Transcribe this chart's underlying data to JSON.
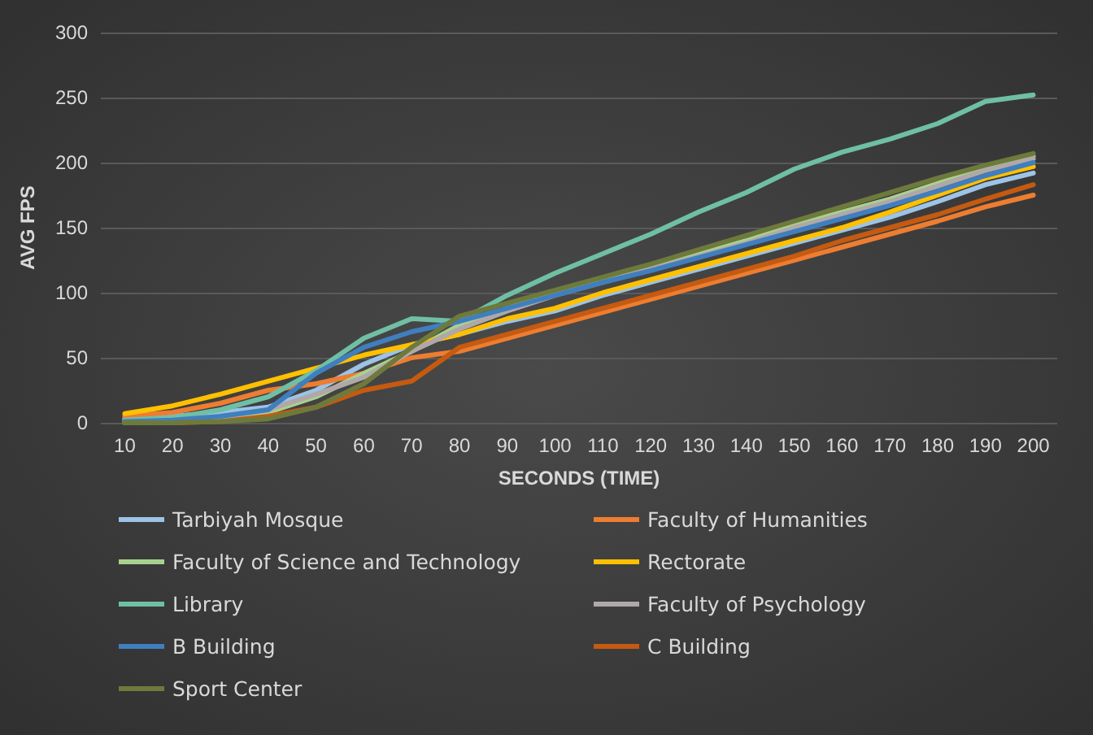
{
  "chart_data": {
    "type": "line",
    "xlabel": "SECONDS (TIME)",
    "ylabel": "AVG FPS",
    "categories": [
      "10",
      "20",
      "30",
      "40",
      "50",
      "60",
      "70",
      "80",
      "90",
      "100",
      "110",
      "120",
      "130",
      "140",
      "150",
      "160",
      "170",
      "180",
      "190",
      "200"
    ],
    "ylim": [
      0,
      300
    ],
    "yticks": [
      0,
      50,
      100,
      150,
      200,
      250,
      300
    ],
    "grid": "y",
    "legend": "bottom",
    "marker": "none",
    "series": [
      {
        "name": "Tarbiyah Mosque",
        "color": "#9dc3e6",
        "values": [
          3,
          5,
          8,
          12,
          25,
          45,
          60,
          68,
          78,
          86,
          98,
          108,
          118,
          128,
          138,
          148,
          158,
          170,
          183,
          192
        ]
      },
      {
        "name": "Faculty of Humanities",
        "color": "#ed7d31",
        "values": [
          5,
          8,
          15,
          25,
          30,
          38,
          50,
          55,
          65,
          75,
          85,
          95,
          105,
          115,
          125,
          135,
          145,
          155,
          166,
          175
        ]
      },
      {
        "name": "Faculty of Science and Technology",
        "color": "#a9d18e",
        "values": [
          0,
          1,
          3,
          8,
          20,
          38,
          55,
          75,
          88,
          100,
          110,
          120,
          130,
          140,
          152,
          162,
          172,
          184,
          196,
          205
        ]
      },
      {
        "name": "Rectorate",
        "color": "#ffc000",
        "values": [
          7,
          13,
          22,
          32,
          42,
          52,
          60,
          68,
          80,
          88,
          100,
          110,
          120,
          130,
          140,
          150,
          162,
          175,
          188,
          197
        ]
      },
      {
        "name": "Library",
        "color": "#6fbfa5",
        "values": [
          2,
          4,
          10,
          20,
          40,
          65,
          80,
          78,
          98,
          115,
          130,
          145,
          162,
          177,
          195,
          208,
          218,
          230,
          247,
          252
        ]
      },
      {
        "name": "Faculty of Psychology",
        "color": "#b0a8a8",
        "values": [
          1,
          2,
          4,
          10,
          22,
          35,
          55,
          72,
          86,
          98,
          108,
          118,
          128,
          138,
          150,
          160,
          170,
          182,
          194,
          203
        ]
      },
      {
        "name": "B Building",
        "color": "#3f7fbf",
        "values": [
          1,
          2,
          5,
          10,
          38,
          58,
          70,
          78,
          88,
          98,
          108,
          117,
          127,
          137,
          147,
          157,
          167,
          178,
          190,
          200
        ]
      },
      {
        "name": "C Building",
        "color": "#c55a11",
        "values": [
          0,
          0,
          1,
          5,
          12,
          25,
          32,
          58,
          68,
          78,
          88,
          98,
          108,
          118,
          128,
          140,
          150,
          160,
          172,
          183
        ]
      },
      {
        "name": "Sport Center",
        "color": "#6d7a3c",
        "values": [
          0,
          0,
          1,
          3,
          12,
          30,
          58,
          82,
          92,
          102,
          112,
          122,
          133,
          144,
          155,
          166,
          177,
          188,
          198,
          207
        ]
      }
    ]
  }
}
